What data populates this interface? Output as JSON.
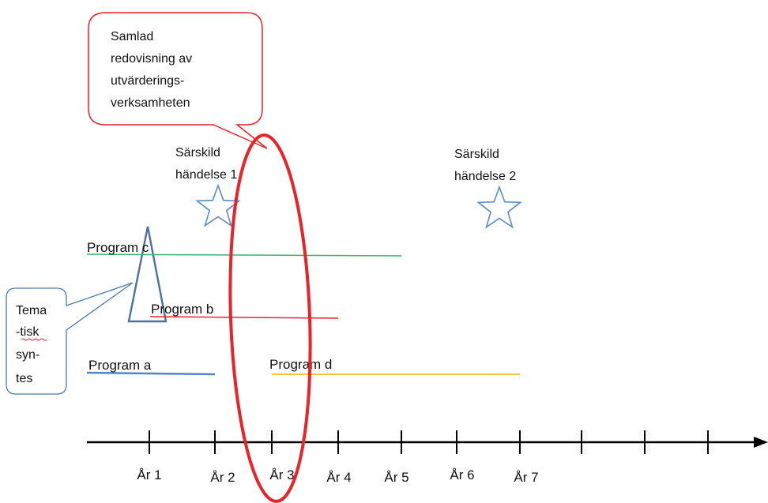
{
  "callouts": {
    "top": {
      "lines": [
        "Samlad",
        "redovisning av",
        "utvärderings-",
        "verksamheten"
      ],
      "border_color": "#e8232a"
    },
    "left": {
      "lines": [
        "Tema",
        "-tisk",
        "syn-",
        "tes"
      ],
      "border_color": "#4a7ab0"
    }
  },
  "events": [
    {
      "lines": [
        "Särskild",
        "händelse 1"
      ]
    },
    {
      "lines": [
        "Särskild",
        "händelse 2"
      ]
    }
  ],
  "programs": [
    {
      "label": "Program c",
      "color": "#3cb371"
    },
    {
      "label": "Program b",
      "color": "#e8232a"
    },
    {
      "label": "Program a",
      "color": "#4f86c6"
    },
    {
      "label": "Program d",
      "color": "#f5c242"
    }
  ],
  "axis": {
    "tick_labels": [
      "År 1",
      "År 2",
      "År 3",
      "År 4",
      "År 5",
      "År 6",
      "År 7"
    ]
  },
  "colors": {
    "highlight_ellipse": "#e8232a",
    "triangle": "#4a6fa5",
    "star": "#5b8cc8",
    "axis": "#000000"
  }
}
